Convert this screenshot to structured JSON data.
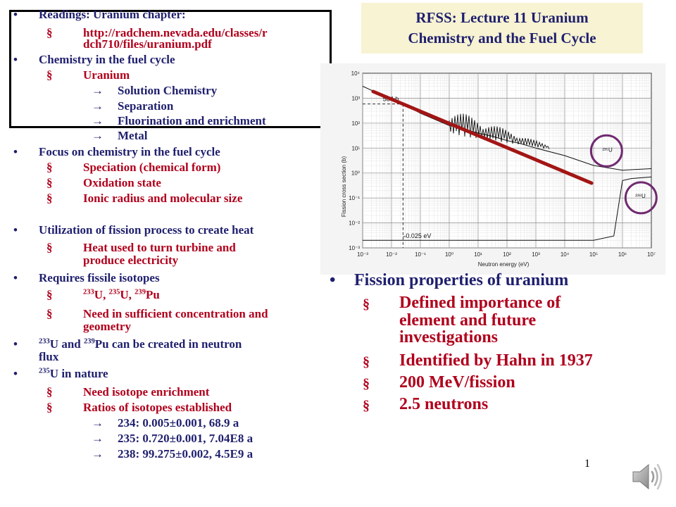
{
  "title": {
    "line1": "RFSS:  Lecture 11 Uranium",
    "line2": "Chemistry and the Fuel Cycle"
  },
  "left": {
    "readings": "Readings:  Uranium chapter:",
    "url_line1": "http://radchem.nevada.edu/classes/r",
    "url_line2": "dch710/files/uranium.pdf",
    "fuel_cycle": "Chemistry in the fuel cycle",
    "uranium": "Uranium",
    "solution": "Solution Chemistry",
    "separation": "Separation",
    "fluorination": "Fluorination and enrichment",
    "metal": "Metal",
    "focus": "Focus on chemistry in the fuel cycle",
    "speciation": "Speciation (chemical form)",
    "oxidation": "Oxidation state",
    "ionic": "Ionic radius and molecular size",
    "utilization": "Utilization of fission process to create heat",
    "heat_line1": "Heat used to turn turbine and",
    "heat_line2": "produce electricity",
    "requires": "Requires fissile isotopes",
    "iso_233": "233",
    "iso_235": "235",
    "iso_239": "239",
    "iso_U1": "U, ",
    "iso_U2": "U, ",
    "iso_Pu": "Pu",
    "need_line1": "Need in sufficient concentration and",
    "need_line2": "geometry",
    "created_233": "233",
    "created_mid": "U and ",
    "created_239": "239",
    "created_line1_rest": "Pu can be created in neutron",
    "created_line2": "flux",
    "nature_sup": "235",
    "nature_rest": "U in nature",
    "enrich": "Need isotope enrichment",
    "ratios": "Ratios of isotopes established",
    "r234": "234:  0.005±0.001, 68.9 a",
    "r235": "235:  0.720±0.001, 7.04E8 a",
    "r238": "238:  99.275±0.002, 4.5E9 a"
  },
  "right": {
    "heading": "Fission properties of uranium",
    "defined_line1": "Defined importance of",
    "defined_line2": "element and future",
    "defined_line3": "investigations",
    "hahn": "Identified by Hahn in 1937",
    "mev": "200 MeV/fission",
    "neutrons": "2.5 neutrons"
  },
  "slide_number": "1",
  "glyphs": {
    "bullet": "•",
    "square": "§",
    "arrow": "→"
  },
  "chart_data": {
    "type": "line",
    "ylabel": "Fission cross section (b)",
    "xlabel": "Neutron energy (eV)",
    "x_scale": "log",
    "y_scale": "log",
    "x_ticks": [
      "10⁻³",
      "10⁻²",
      "10⁻¹",
      "10⁰",
      "10¹",
      "10²",
      "10³",
      "10⁴",
      "10⁵",
      "10⁶",
      "10⁷"
    ],
    "y_ticks": [
      "10⁴",
      "10³",
      "10²",
      "10¹",
      "10⁰",
      "10⁻¹",
      "10⁻²",
      "10⁻³"
    ],
    "xlim": [
      0.001,
      10000000
    ],
    "ylim": [
      0.001,
      10000
    ],
    "grid": true,
    "annotations": [
      "584 b",
      "0.025 eV",
      "²³⁵U",
      "²³⁸U"
    ],
    "annotation_points": [
      {
        "label": "584 b",
        "x": 0.025,
        "y": 584
      }
    ],
    "series": [
      {
        "curve": "235U",
        "x": [
          0.001,
          0.01,
          0.025,
          0.1,
          1,
          3,
          10,
          30,
          100,
          300,
          1000,
          10000,
          100000,
          1000000,
          10000000
        ],
        "y": [
          3000,
          900,
          584,
          250,
          80,
          60,
          40,
          30,
          20,
          15,
          10,
          5,
          2,
          1.3,
          1.5
        ]
      },
      {
        "curve": "238U",
        "x": [
          0.001,
          10,
          1000,
          100000,
          500000,
          1000000,
          2000000,
          10000000
        ],
        "y": [
          0.002,
          0.002,
          0.002,
          0.002,
          0.003,
          0.5,
          0.6,
          0.7
        ]
      }
    ],
    "trend_line": {
      "color": "#a31515"
    },
    "circles_color": "#702a70"
  }
}
